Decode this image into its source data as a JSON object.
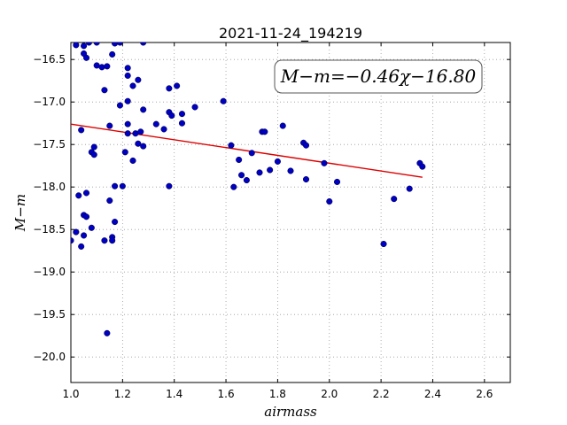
{
  "chart_data": {
    "type": "scatter",
    "title": "2021-11-24_194219",
    "xlabel": "airmass",
    "ylabel": "M−m",
    "xlim": [
      1.0,
      2.7
    ],
    "ylim": [
      -20.3,
      -16.3
    ],
    "y_inverted": true,
    "grid": true,
    "xticks": [
      1.0,
      1.2,
      1.4,
      1.6,
      1.8,
      2.0,
      2.2,
      2.4,
      2.6
    ],
    "xtick_labels": [
      "1.0",
      "1.2",
      "1.4",
      "1.6",
      "1.8",
      "2.0",
      "2.2",
      "2.4",
      "2.6"
    ],
    "yticks": [
      -16.5,
      -17.0,
      -17.5,
      -18.0,
      -18.5,
      -19.0,
      -19.5,
      -20.0
    ],
    "ytick_labels": [
      "−16.5",
      "−17.0",
      "−17.5",
      "−18.0",
      "−18.5",
      "−19.0",
      "−19.5",
      "−20.0"
    ],
    "annotation": "M−m=−0.46χ−16.80",
    "annotation_position": "top-right",
    "fit": {
      "slope": -0.46,
      "intercept": -16.8,
      "x_range": [
        1.0,
        2.36
      ],
      "color": "#dd0000"
    },
    "point_color": "#0000c0",
    "points": [
      [
        1.02,
        -16.33
      ],
      [
        1.05,
        -16.34
      ],
      [
        1.05,
        -16.43
      ],
      [
        1.07,
        -16.3
      ],
      [
        1.06,
        -16.48
      ],
      [
        1.1,
        -16.57
      ],
      [
        1.12,
        -16.59
      ],
      [
        1.14,
        -16.58
      ],
      [
        1.16,
        -16.44
      ],
      [
        1.17,
        -16.31
      ],
      [
        1.19,
        -16.3
      ],
      [
        1.1,
        -16.3
      ],
      [
        1.28,
        -16.3
      ],
      [
        1.22,
        -16.6
      ],
      [
        1.22,
        -16.69
      ],
      [
        1.26,
        -16.74
      ],
      [
        1.24,
        -16.81
      ],
      [
        1.13,
        -16.86
      ],
      [
        1.38,
        -16.84
      ],
      [
        1.41,
        -16.81
      ],
      [
        1.22,
        -16.99
      ],
      [
        1.19,
        -17.04
      ],
      [
        1.28,
        -17.09
      ],
      [
        1.38,
        -17.12
      ],
      [
        1.39,
        -17.16
      ],
      [
        1.43,
        -17.14
      ],
      [
        1.48,
        -17.06
      ],
      [
        1.59,
        -16.99
      ],
      [
        1.22,
        -17.26
      ],
      [
        1.15,
        -17.28
      ],
      [
        1.33,
        -17.26
      ],
      [
        1.36,
        -17.32
      ],
      [
        1.43,
        -17.25
      ],
      [
        1.04,
        -17.33
      ],
      [
        1.22,
        -17.37
      ],
      [
        1.25,
        -17.37
      ],
      [
        1.27,
        -17.35
      ],
      [
        1.26,
        -17.49
      ],
      [
        1.28,
        -17.52
      ],
      [
        1.09,
        -17.53
      ],
      [
        1.21,
        -17.59
      ],
      [
        1.08,
        -17.59
      ],
      [
        1.09,
        -17.62
      ],
      [
        1.24,
        -17.69
      ],
      [
        1.17,
        -17.99
      ],
      [
        1.2,
        -17.99
      ],
      [
        1.38,
        -17.99
      ],
      [
        1.62,
        -17.51
      ],
      [
        1.65,
        -17.68
      ],
      [
        1.7,
        -17.6
      ],
      [
        1.74,
        -17.35
      ],
      [
        1.75,
        -17.35
      ],
      [
        1.82,
        -17.28
      ],
      [
        1.9,
        -17.48
      ],
      [
        1.91,
        -17.51
      ],
      [
        1.8,
        -17.7
      ],
      [
        1.77,
        -17.8
      ],
      [
        1.73,
        -17.83
      ],
      [
        1.66,
        -17.86
      ],
      [
        1.68,
        -17.92
      ],
      [
        1.63,
        -18.0
      ],
      [
        1.85,
        -17.81
      ],
      [
        1.91,
        -17.91
      ],
      [
        1.98,
        -17.72
      ],
      [
        2.03,
        -17.94
      ],
      [
        2.0,
        -18.17
      ],
      [
        2.25,
        -18.14
      ],
      [
        2.31,
        -18.02
      ],
      [
        2.35,
        -17.72
      ],
      [
        2.36,
        -17.76
      ],
      [
        2.21,
        -18.67
      ],
      [
        1.03,
        -18.1
      ],
      [
        1.06,
        -18.07
      ],
      [
        1.15,
        -18.16
      ],
      [
        1.05,
        -18.33
      ],
      [
        1.06,
        -18.35
      ],
      [
        1.17,
        -18.41
      ],
      [
        1.08,
        -18.48
      ],
      [
        1.02,
        -18.53
      ],
      [
        1.05,
        -18.57
      ],
      [
        1.16,
        -18.59
      ],
      [
        1.16,
        -18.63
      ],
      [
        1.13,
        -18.63
      ],
      [
        1.0,
        -18.63
      ],
      [
        1.04,
        -18.7
      ],
      [
        1.14,
        -19.72
      ]
    ]
  }
}
